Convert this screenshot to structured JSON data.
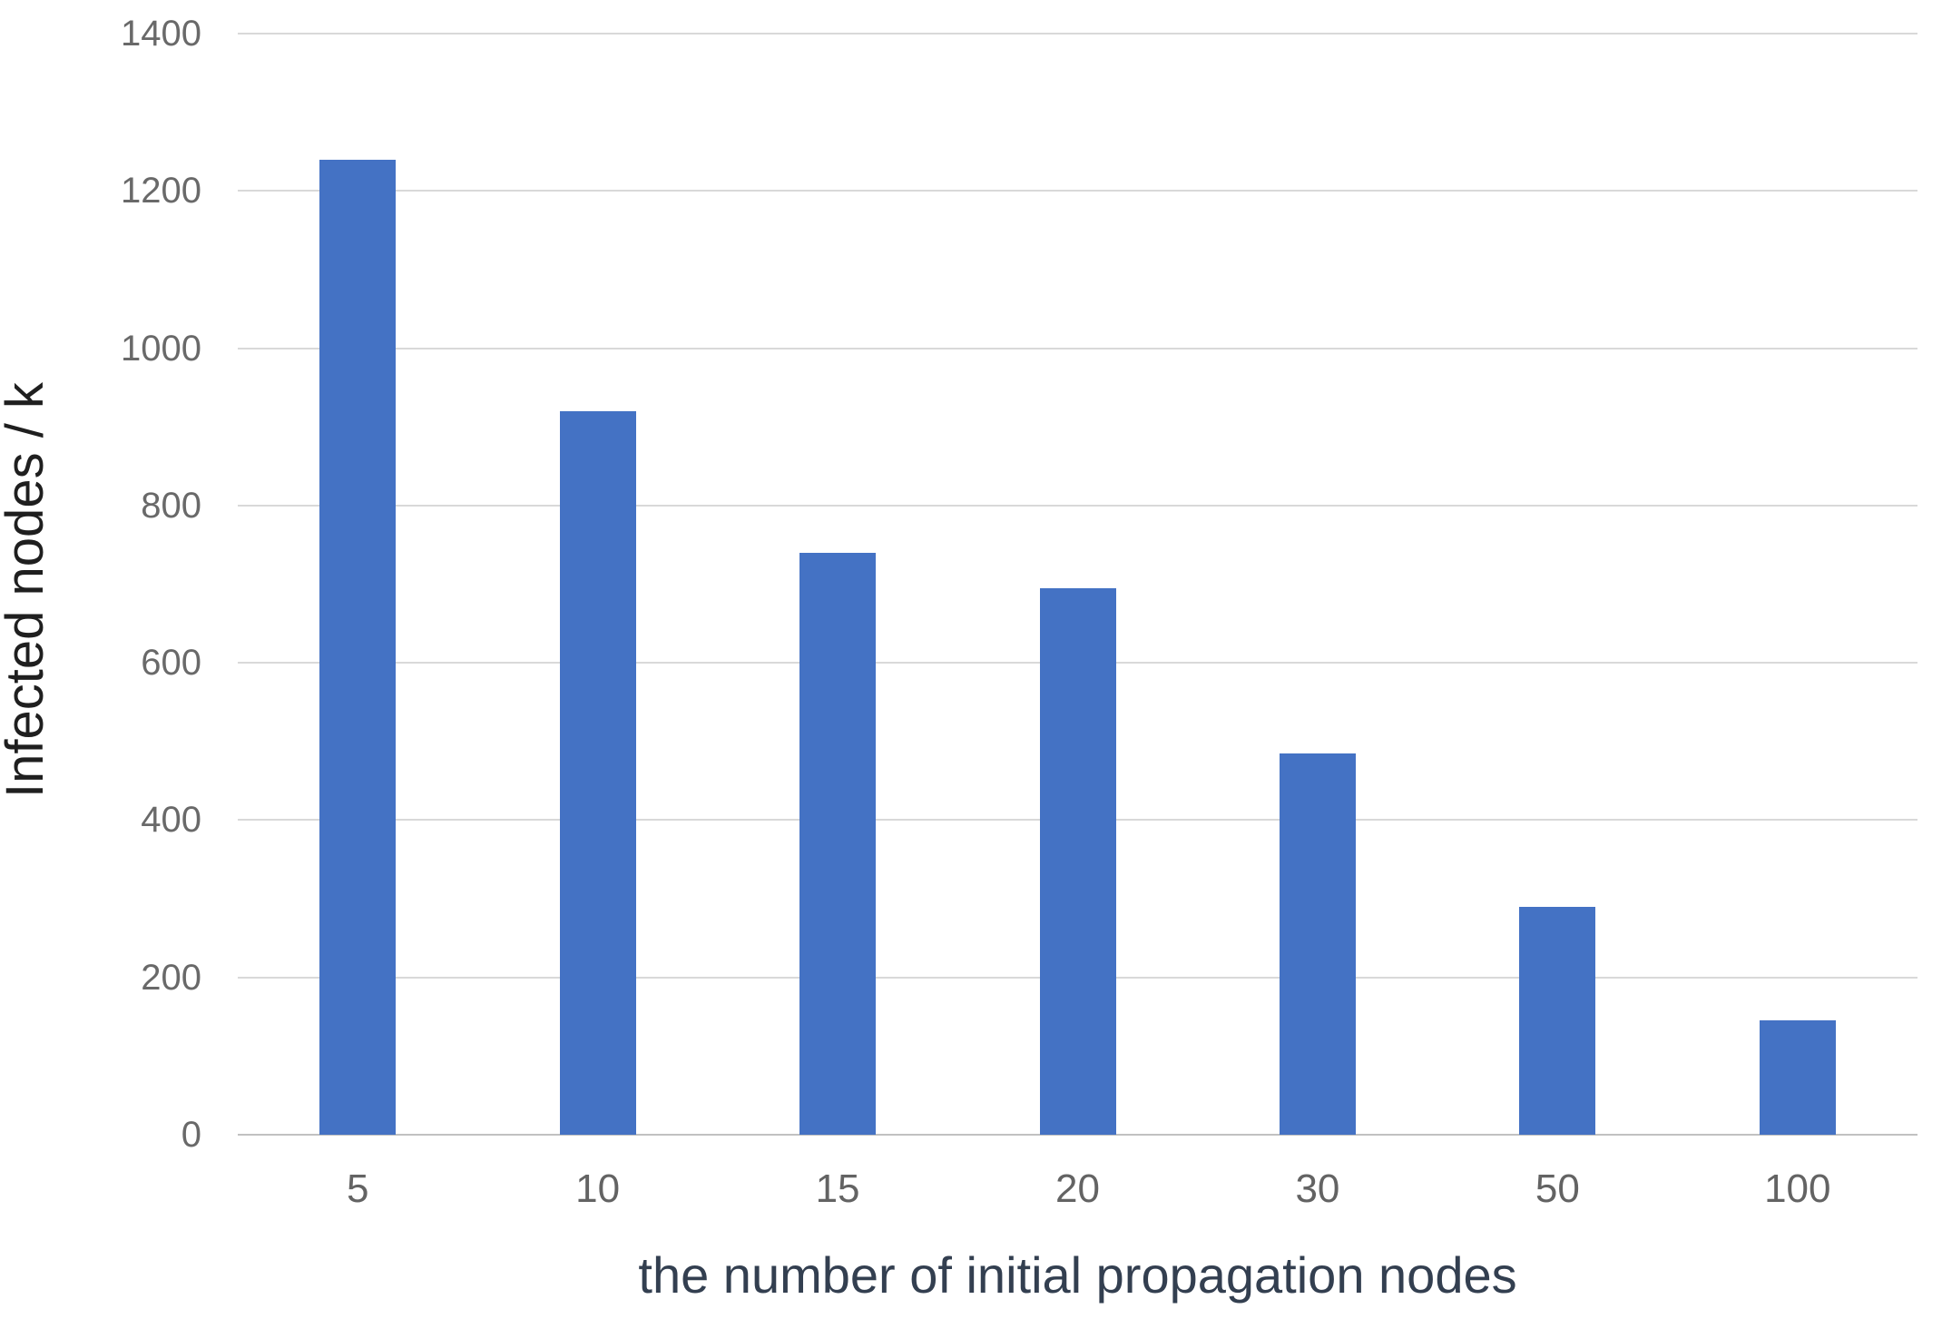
{
  "chart_data": {
    "type": "bar",
    "categories": [
      "5",
      "10",
      "15",
      "20",
      "30",
      "50",
      "100"
    ],
    "values": [
      1240,
      920,
      740,
      695,
      485,
      290,
      145
    ],
    "title": "",
    "xlabel": "the number of initial propagation nodes",
    "ylabel": "Infected nodes / k",
    "ylim": [
      0,
      1400
    ],
    "yticks": [
      0,
      200,
      400,
      600,
      800,
      1000,
      1200,
      1400
    ],
    "grid": true,
    "legend": false,
    "colors": {
      "bar": "#4472c4",
      "gridline": "#d9d9d9",
      "axis_baseline": "#c1c1c1",
      "y_tick_label": "#696969",
      "x_tick_label": "#636363",
      "y_axis_title": "#1f1f1f",
      "x_axis_title": "#333f50"
    }
  }
}
